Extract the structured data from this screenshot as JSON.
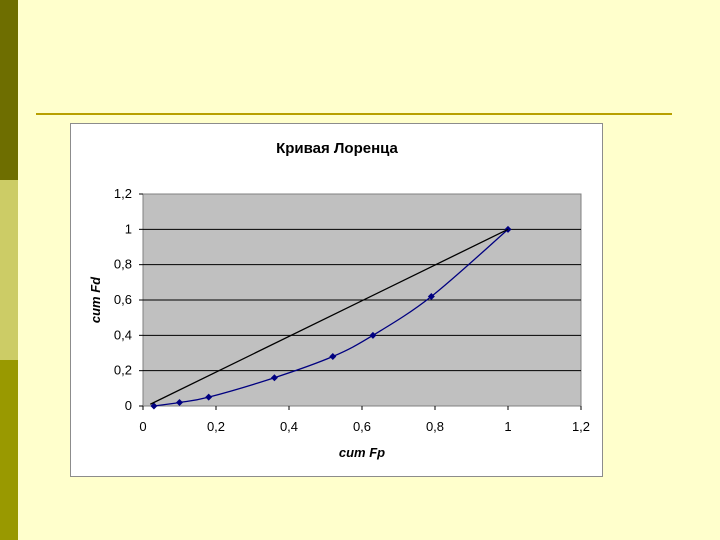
{
  "theme": {
    "background": "#ffffcc",
    "side_bar_colors": [
      "#6e6e00",
      "#cccc66",
      "#999900"
    ],
    "rule_color": "#b8a000"
  },
  "chart_data": {
    "type": "line",
    "title": "Кривая Лоренца",
    "xlabel": "cum Fp",
    "ylabel": "cum Fd",
    "xlim": [
      0,
      1.2
    ],
    "ylim": [
      0,
      1.2
    ],
    "xticks": [
      "0",
      "0,2",
      "0,4",
      "0,6",
      "0,8",
      "1",
      "1,2"
    ],
    "yticks": [
      "0",
      "0,2",
      "0,4",
      "0,6",
      "0,8",
      "1",
      "1,2"
    ],
    "grid": true,
    "legend": "none",
    "plot_background": "#c0c0c0",
    "series": [
      {
        "color": "#000080",
        "marker": "diamond",
        "x": [
          0.03,
          0.1,
          0.18,
          0.36,
          0.52,
          0.63,
          0.79,
          1.0
        ],
        "y": [
          0.0,
          0.02,
          0.05,
          0.16,
          0.28,
          0.4,
          0.62,
          1.0
        ]
      },
      {
        "color": "#000000",
        "marker": "none",
        "x": [
          0.02,
          1.0
        ],
        "y": [
          0.01,
          1.0
        ]
      }
    ]
  }
}
